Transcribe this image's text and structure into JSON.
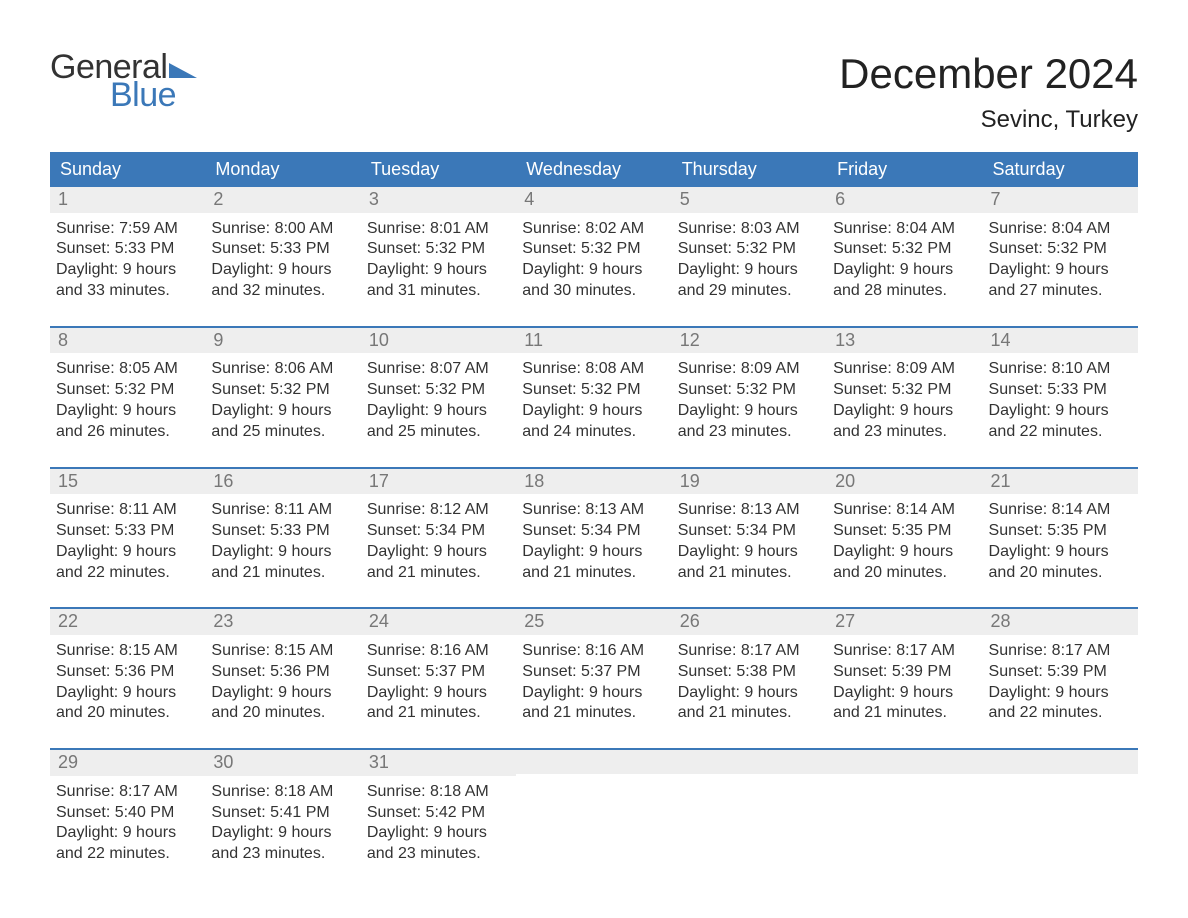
{
  "logo": {
    "text1": "General",
    "text2": "Blue",
    "flag_color": "#3b78b8"
  },
  "title": "December 2024",
  "location": "Sevinc, Turkey",
  "colors": {
    "header_bg": "#3b78b8",
    "header_text": "#ffffff",
    "daynum_bg": "#eeeeee",
    "daynum_text": "#777777",
    "body_text": "#333333",
    "week_border": "#3b78b8"
  },
  "day_headers": [
    "Sunday",
    "Monday",
    "Tuesday",
    "Wednesday",
    "Thursday",
    "Friday",
    "Saturday"
  ],
  "weeks": [
    [
      {
        "n": "1",
        "sr": "Sunrise: 7:59 AM",
        "ss": "Sunset: 5:33 PM",
        "d1": "Daylight: 9 hours",
        "d2": "and 33 minutes."
      },
      {
        "n": "2",
        "sr": "Sunrise: 8:00 AM",
        "ss": "Sunset: 5:33 PM",
        "d1": "Daylight: 9 hours",
        "d2": "and 32 minutes."
      },
      {
        "n": "3",
        "sr": "Sunrise: 8:01 AM",
        "ss": "Sunset: 5:32 PM",
        "d1": "Daylight: 9 hours",
        "d2": "and 31 minutes."
      },
      {
        "n": "4",
        "sr": "Sunrise: 8:02 AM",
        "ss": "Sunset: 5:32 PM",
        "d1": "Daylight: 9 hours",
        "d2": "and 30 minutes."
      },
      {
        "n": "5",
        "sr": "Sunrise: 8:03 AM",
        "ss": "Sunset: 5:32 PM",
        "d1": "Daylight: 9 hours",
        "d2": "and 29 minutes."
      },
      {
        "n": "6",
        "sr": "Sunrise: 8:04 AM",
        "ss": "Sunset: 5:32 PM",
        "d1": "Daylight: 9 hours",
        "d2": "and 28 minutes."
      },
      {
        "n": "7",
        "sr": "Sunrise: 8:04 AM",
        "ss": "Sunset: 5:32 PM",
        "d1": "Daylight: 9 hours",
        "d2": "and 27 minutes."
      }
    ],
    [
      {
        "n": "8",
        "sr": "Sunrise: 8:05 AM",
        "ss": "Sunset: 5:32 PM",
        "d1": "Daylight: 9 hours",
        "d2": "and 26 minutes."
      },
      {
        "n": "9",
        "sr": "Sunrise: 8:06 AM",
        "ss": "Sunset: 5:32 PM",
        "d1": "Daylight: 9 hours",
        "d2": "and 25 minutes."
      },
      {
        "n": "10",
        "sr": "Sunrise: 8:07 AM",
        "ss": "Sunset: 5:32 PM",
        "d1": "Daylight: 9 hours",
        "d2": "and 25 minutes."
      },
      {
        "n": "11",
        "sr": "Sunrise: 8:08 AM",
        "ss": "Sunset: 5:32 PM",
        "d1": "Daylight: 9 hours",
        "d2": "and 24 minutes."
      },
      {
        "n": "12",
        "sr": "Sunrise: 8:09 AM",
        "ss": "Sunset: 5:32 PM",
        "d1": "Daylight: 9 hours",
        "d2": "and 23 minutes."
      },
      {
        "n": "13",
        "sr": "Sunrise: 8:09 AM",
        "ss": "Sunset: 5:32 PM",
        "d1": "Daylight: 9 hours",
        "d2": "and 23 minutes."
      },
      {
        "n": "14",
        "sr": "Sunrise: 8:10 AM",
        "ss": "Sunset: 5:33 PM",
        "d1": "Daylight: 9 hours",
        "d2": "and 22 minutes."
      }
    ],
    [
      {
        "n": "15",
        "sr": "Sunrise: 8:11 AM",
        "ss": "Sunset: 5:33 PM",
        "d1": "Daylight: 9 hours",
        "d2": "and 22 minutes."
      },
      {
        "n": "16",
        "sr": "Sunrise: 8:11 AM",
        "ss": "Sunset: 5:33 PM",
        "d1": "Daylight: 9 hours",
        "d2": "and 21 minutes."
      },
      {
        "n": "17",
        "sr": "Sunrise: 8:12 AM",
        "ss": "Sunset: 5:34 PM",
        "d1": "Daylight: 9 hours",
        "d2": "and 21 minutes."
      },
      {
        "n": "18",
        "sr": "Sunrise: 8:13 AM",
        "ss": "Sunset: 5:34 PM",
        "d1": "Daylight: 9 hours",
        "d2": "and 21 minutes."
      },
      {
        "n": "19",
        "sr": "Sunrise: 8:13 AM",
        "ss": "Sunset: 5:34 PM",
        "d1": "Daylight: 9 hours",
        "d2": "and 21 minutes."
      },
      {
        "n": "20",
        "sr": "Sunrise: 8:14 AM",
        "ss": "Sunset: 5:35 PM",
        "d1": "Daylight: 9 hours",
        "d2": "and 20 minutes."
      },
      {
        "n": "21",
        "sr": "Sunrise: 8:14 AM",
        "ss": "Sunset: 5:35 PM",
        "d1": "Daylight: 9 hours",
        "d2": "and 20 minutes."
      }
    ],
    [
      {
        "n": "22",
        "sr": "Sunrise: 8:15 AM",
        "ss": "Sunset: 5:36 PM",
        "d1": "Daylight: 9 hours",
        "d2": "and 20 minutes."
      },
      {
        "n": "23",
        "sr": "Sunrise: 8:15 AM",
        "ss": "Sunset: 5:36 PM",
        "d1": "Daylight: 9 hours",
        "d2": "and 20 minutes."
      },
      {
        "n": "24",
        "sr": "Sunrise: 8:16 AM",
        "ss": "Sunset: 5:37 PM",
        "d1": "Daylight: 9 hours",
        "d2": "and 21 minutes."
      },
      {
        "n": "25",
        "sr": "Sunrise: 8:16 AM",
        "ss": "Sunset: 5:37 PM",
        "d1": "Daylight: 9 hours",
        "d2": "and 21 minutes."
      },
      {
        "n": "26",
        "sr": "Sunrise: 8:17 AM",
        "ss": "Sunset: 5:38 PM",
        "d1": "Daylight: 9 hours",
        "d2": "and 21 minutes."
      },
      {
        "n": "27",
        "sr": "Sunrise: 8:17 AM",
        "ss": "Sunset: 5:39 PM",
        "d1": "Daylight: 9 hours",
        "d2": "and 21 minutes."
      },
      {
        "n": "28",
        "sr": "Sunrise: 8:17 AM",
        "ss": "Sunset: 5:39 PM",
        "d1": "Daylight: 9 hours",
        "d2": "and 22 minutes."
      }
    ],
    [
      {
        "n": "29",
        "sr": "Sunrise: 8:17 AM",
        "ss": "Sunset: 5:40 PM",
        "d1": "Daylight: 9 hours",
        "d2": "and 22 minutes."
      },
      {
        "n": "30",
        "sr": "Sunrise: 8:18 AM",
        "ss": "Sunset: 5:41 PM",
        "d1": "Daylight: 9 hours",
        "d2": "and 23 minutes."
      },
      {
        "n": "31",
        "sr": "Sunrise: 8:18 AM",
        "ss": "Sunset: 5:42 PM",
        "d1": "Daylight: 9 hours",
        "d2": "and 23 minutes."
      },
      {
        "empty": true
      },
      {
        "empty": true
      },
      {
        "empty": true
      },
      {
        "empty": true
      }
    ]
  ]
}
